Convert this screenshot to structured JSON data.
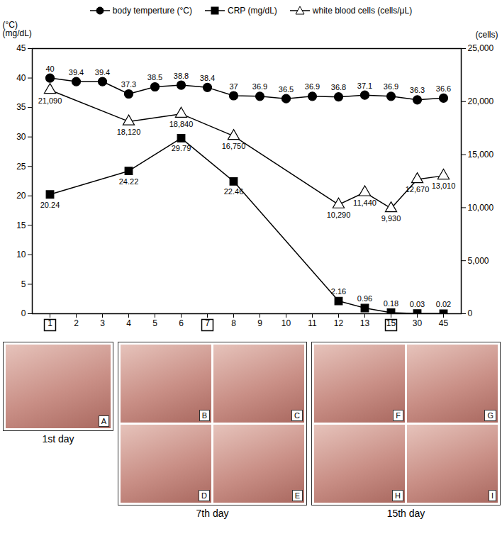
{
  "chart_data": {
    "type": "line",
    "categories": [
      "1",
      "2",
      "3",
      "4",
      "5",
      "6",
      "7",
      "8",
      "9",
      "10",
      "11",
      "12",
      "13",
      "15",
      "30",
      "45"
    ],
    "y_label": [
      "(°C)",
      "(mg/dL)"
    ],
    "y2_label": "(cells)",
    "ylim": [
      0,
      45
    ],
    "yticks": [
      0,
      5,
      10,
      15,
      20,
      25,
      30,
      35,
      40,
      45
    ],
    "y2lim": [
      0,
      25000
    ],
    "y2ticks": [
      0,
      {
        "value": 5000,
        "label": "5,000"
      },
      {
        "value": 10000,
        "label": "10,000"
      },
      {
        "value": 15000,
        "label": "15,000"
      },
      {
        "value": 20000,
        "label": "20,000"
      },
      {
        "value": 25000,
        "label": "25,000"
      }
    ],
    "grid": false,
    "legend": "top",
    "data_labels": true,
    "series": [
      {
        "name": "body temperture (°C)",
        "color": "#000000",
        "marker": "circle",
        "values": [
          40,
          39.4,
          39.4,
          37.3,
          38.5,
          38.8,
          38.4,
          37,
          36.9,
          36.5,
          36.9,
          36.8,
          37.1,
          36.9,
          36.3,
          36.6
        ]
      },
      {
        "name": "CRP (mg/dL)",
        "color": "#000000",
        "marker": "square",
        "values": [
          20.24,
          null,
          null,
          24.22,
          null,
          29.79,
          null,
          22.46,
          null,
          null,
          null,
          2.16,
          0.96,
          0.18,
          0.03,
          0.02
        ]
      },
      {
        "name": "white blood cells (cells/μL)",
        "color": "#000000",
        "marker": "triangle-open",
        "axis": "y2",
        "values": [
          21090,
          null,
          null,
          18120,
          null,
          18840,
          null,
          16750,
          null,
          null,
          null,
          10290,
          11440,
          9930,
          12670,
          13010
        ],
        "value_labels": [
          "21,090",
          null,
          null,
          "18,120",
          null,
          "18,840",
          null,
          "16,750",
          null,
          null,
          null,
          "10,290",
          "11,440",
          "9,930",
          "12,670",
          "13,010"
        ]
      }
    ]
  },
  "panels": [
    {
      "label": "1st day",
      "day": "1",
      "images": [
        "A"
      ]
    },
    {
      "label": "7th day",
      "day": "7",
      "images": [
        "B",
        "C",
        "D",
        "E"
      ]
    },
    {
      "label": "15th day",
      "day": "15",
      "images": [
        "F",
        "G",
        "H",
        "I"
      ]
    }
  ]
}
